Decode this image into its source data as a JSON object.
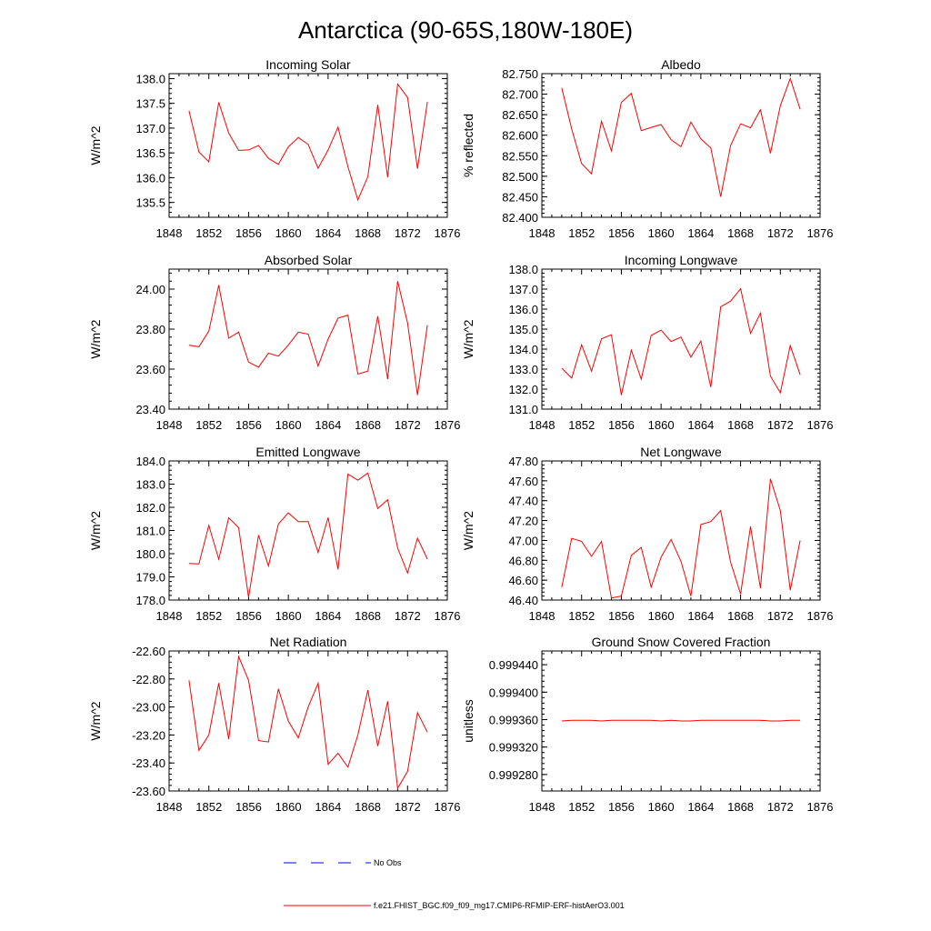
{
  "title": "Antarctica (90-65S,180W-180E)",
  "colors": {
    "series": "#ff0000",
    "no_obs": "#0000ff",
    "axis": "#000000"
  },
  "legend": [
    {
      "label": "No Obs",
      "style": "dashed",
      "color": "#0000ff"
    },
    {
      "label": "f.e21.FHIST_BGC.f09_f09_mg17.CMIP6-RFMIP-ERF-histAerO3.001",
      "style": "solid",
      "color": "#ff0000"
    }
  ],
  "chart_data": [
    {
      "type": "line",
      "title": "Incoming Solar",
      "ylabel": "W/m^2",
      "xlim": [
        1848,
        1876
      ],
      "x_ticks": [
        "1848",
        "1852",
        "1856",
        "1860",
        "1864",
        "1868",
        "1872",
        "1876"
      ],
      "ylim": [
        135.2,
        138.1
      ],
      "y_ticks": [
        "135.5",
        "136.0",
        "136.5",
        "137.0",
        "137.5",
        "138.0"
      ],
      "x": [
        1850,
        1851,
        1852,
        1853,
        1854,
        1855,
        1856,
        1857,
        1858,
        1859,
        1860,
        1861,
        1862,
        1863,
        1864,
        1865,
        1866,
        1867,
        1868,
        1869,
        1870,
        1871,
        1872,
        1873,
        1874
      ],
      "series": [
        {
          "values": [
            137.35,
            136.52,
            136.32,
            137.52,
            136.9,
            136.55,
            136.56,
            136.65,
            136.39,
            136.27,
            136.62,
            136.81,
            136.67,
            136.19,
            136.56,
            137.02,
            136.22,
            135.55,
            136.02,
            137.47,
            136.01,
            137.89,
            137.62,
            136.18,
            137.53
          ]
        }
      ]
    },
    {
      "type": "line",
      "title": "Albedo",
      "ylabel": "% reflected",
      "xlim": [
        1848,
        1876
      ],
      "x_ticks": [
        "1848",
        "1852",
        "1856",
        "1860",
        "1864",
        "1868",
        "1872",
        "1876"
      ],
      "ylim": [
        82.4,
        82.75
      ],
      "y_ticks": [
        "82.400",
        "82.450",
        "82.500",
        "82.550",
        "82.600",
        "82.650",
        "82.700",
        "82.750"
      ],
      "x": [
        1850,
        1851,
        1852,
        1853,
        1854,
        1855,
        1856,
        1857,
        1858,
        1859,
        1860,
        1861,
        1862,
        1863,
        1864,
        1865,
        1866,
        1867,
        1868,
        1869,
        1870,
        1871,
        1872,
        1873,
        1874
      ],
      "series": [
        {
          "values": [
            82.715,
            82.615,
            82.531,
            82.506,
            82.634,
            82.562,
            82.68,
            82.702,
            82.611,
            82.619,
            82.626,
            82.589,
            82.572,
            82.632,
            82.591,
            82.569,
            82.45,
            82.575,
            82.628,
            82.618,
            82.662,
            82.556,
            82.672,
            82.738,
            82.663
          ]
        }
      ]
    },
    {
      "type": "line",
      "title": "Absorbed Solar",
      "ylabel": "W/m^2",
      "xlim": [
        1848,
        1876
      ],
      "x_ticks": [
        "1848",
        "1852",
        "1856",
        "1860",
        "1864",
        "1868",
        "1872",
        "1876"
      ],
      "ylim": [
        23.4,
        24.1
      ],
      "y_ticks": [
        "23.40",
        "23.60",
        "23.80",
        "24.00"
      ],
      "x": [
        1850,
        1851,
        1852,
        1853,
        1854,
        1855,
        1856,
        1857,
        1858,
        1859,
        1860,
        1861,
        1862,
        1863,
        1864,
        1865,
        1866,
        1867,
        1868,
        1869,
        1870,
        1871,
        1872,
        1873,
        1874
      ],
      "series": [
        {
          "values": [
            23.72,
            23.712,
            23.79,
            24.02,
            23.755,
            23.785,
            23.635,
            23.61,
            23.68,
            23.665,
            23.72,
            23.785,
            23.775,
            23.615,
            23.75,
            23.855,
            23.87,
            23.575,
            23.59,
            23.865,
            23.55,
            24.04,
            23.83,
            23.47,
            23.82
          ]
        }
      ]
    },
    {
      "type": "line",
      "title": "Incoming Longwave",
      "ylabel": "W/m^2",
      "xlim": [
        1848,
        1876
      ],
      "x_ticks": [
        "1848",
        "1852",
        "1856",
        "1860",
        "1864",
        "1868",
        "1872",
        "1876"
      ],
      "ylim": [
        131.0,
        138.0
      ],
      "y_ticks": [
        "131.0",
        "132.0",
        "133.0",
        "134.0",
        "135.0",
        "136.0",
        "137.0",
        "138.0"
      ],
      "x": [
        1850,
        1851,
        1852,
        1853,
        1854,
        1855,
        1856,
        1857,
        1858,
        1859,
        1860,
        1861,
        1862,
        1863,
        1864,
        1865,
        1866,
        1867,
        1868,
        1869,
        1870,
        1871,
        1872,
        1873,
        1874
      ],
      "series": [
        {
          "values": [
            133.05,
            132.55,
            134.22,
            132.9,
            134.52,
            134.72,
            131.7,
            133.95,
            132.5,
            134.68,
            134.95,
            134.38,
            134.6,
            133.6,
            134.4,
            132.1,
            136.12,
            136.4,
            137.02,
            134.78,
            135.8,
            132.65,
            131.82,
            134.18,
            132.72
          ]
        }
      ]
    },
    {
      "type": "line",
      "title": "Emitted Longwave",
      "ylabel": "W/m^2",
      "xlim": [
        1848,
        1876
      ],
      "x_ticks": [
        "1848",
        "1852",
        "1856",
        "1860",
        "1864",
        "1868",
        "1872",
        "1876"
      ],
      "ylim": [
        178.0,
        184.0
      ],
      "y_ticks": [
        "178.0",
        "179.0",
        "180.0",
        "181.0",
        "182.0",
        "183.0",
        "184.0"
      ],
      "x": [
        1850,
        1851,
        1852,
        1853,
        1854,
        1855,
        1856,
        1857,
        1858,
        1859,
        1860,
        1861,
        1862,
        1863,
        1864,
        1865,
        1866,
        1867,
        1868,
        1869,
        1870,
        1871,
        1872,
        1873,
        1874
      ],
      "series": [
        {
          "values": [
            179.58,
            179.56,
            181.22,
            179.76,
            181.55,
            181.12,
            178.12,
            180.8,
            179.47,
            181.28,
            181.76,
            181.38,
            181.38,
            180.05,
            181.56,
            179.32,
            183.43,
            183.17,
            183.48,
            181.95,
            182.33,
            180.24,
            179.17,
            180.67,
            179.77
          ]
        }
      ]
    },
    {
      "type": "line",
      "title": "Net Longwave",
      "ylabel": "W/m^2",
      "xlim": [
        1848,
        1876
      ],
      "x_ticks": [
        "1848",
        "1852",
        "1856",
        "1860",
        "1864",
        "1868",
        "1872",
        "1876"
      ],
      "ylim": [
        46.4,
        47.8
      ],
      "y_ticks": [
        "46.40",
        "46.60",
        "46.80",
        "47.00",
        "47.20",
        "47.40",
        "47.60",
        "47.80"
      ],
      "x": [
        1850,
        1851,
        1852,
        1853,
        1854,
        1855,
        1856,
        1857,
        1858,
        1859,
        1860,
        1861,
        1862,
        1863,
        1864,
        1865,
        1866,
        1867,
        1868,
        1869,
        1870,
        1871,
        1872,
        1873,
        1874
      ],
      "series": [
        {
          "values": [
            46.53,
            47.02,
            46.99,
            46.84,
            46.99,
            46.42,
            46.44,
            46.85,
            46.93,
            46.53,
            46.83,
            47.01,
            46.79,
            46.44,
            47.16,
            47.19,
            47.3,
            46.78,
            46.46,
            47.14,
            46.52,
            47.62,
            47.3,
            46.5,
            47.0
          ]
        }
      ]
    },
    {
      "type": "line",
      "title": "Net Radiation",
      "ylabel": "W/m^2",
      "xlim": [
        1848,
        1876
      ],
      "x_ticks": [
        "1848",
        "1852",
        "1856",
        "1860",
        "1864",
        "1868",
        "1872",
        "1876"
      ],
      "ylim": [
        -23.6,
        -22.6
      ],
      "y_ticks": [
        "-23.60",
        "-23.40",
        "-23.20",
        "-23.00",
        "-22.80",
        "-22.60"
      ],
      "x": [
        1850,
        1851,
        1852,
        1853,
        1854,
        1855,
        1856,
        1857,
        1858,
        1859,
        1860,
        1861,
        1862,
        1863,
        1864,
        1865,
        1866,
        1867,
        1868,
        1869,
        1870,
        1871,
        1872,
        1873,
        1874
      ],
      "series": [
        {
          "values": [
            -22.81,
            -23.31,
            -23.2,
            -22.83,
            -23.23,
            -22.64,
            -22.81,
            -23.24,
            -23.25,
            -22.87,
            -23.1,
            -23.22,
            -23.0,
            -22.83,
            -23.41,
            -23.33,
            -23.43,
            -23.2,
            -22.88,
            -23.28,
            -22.96,
            -23.58,
            -23.46,
            -23.04,
            -23.18
          ]
        }
      ]
    },
    {
      "type": "line",
      "title": "Ground Snow Covered Fraction",
      "ylabel": "unitless",
      "xlim": [
        1848,
        1876
      ],
      "x_ticks": [
        "1848",
        "1852",
        "1856",
        "1860",
        "1864",
        "1868",
        "1872",
        "1876"
      ],
      "ylim": [
        0.999256,
        0.99946
      ],
      "y_ticks": [
        "0.999280",
        "0.999320",
        "0.999360",
        "0.999400",
        "0.999440"
      ],
      "x": [
        1850,
        1851,
        1852,
        1853,
        1854,
        1855,
        1856,
        1857,
        1858,
        1859,
        1860,
        1861,
        1862,
        1863,
        1864,
        1865,
        1866,
        1867,
        1868,
        1869,
        1870,
        1871,
        1872,
        1873,
        1874
      ],
      "series": [
        {
          "values": [
            0.999358,
            0.999359,
            0.999359,
            0.999359,
            0.999358,
            0.999359,
            0.999359,
            0.999359,
            0.999359,
            0.999359,
            0.999358,
            0.999359,
            0.999358,
            0.999358,
            0.999359,
            0.999359,
            0.999359,
            0.999359,
            0.999359,
            0.999359,
            0.999359,
            0.999358,
            0.999358,
            0.999359,
            0.999359
          ]
        }
      ]
    }
  ]
}
